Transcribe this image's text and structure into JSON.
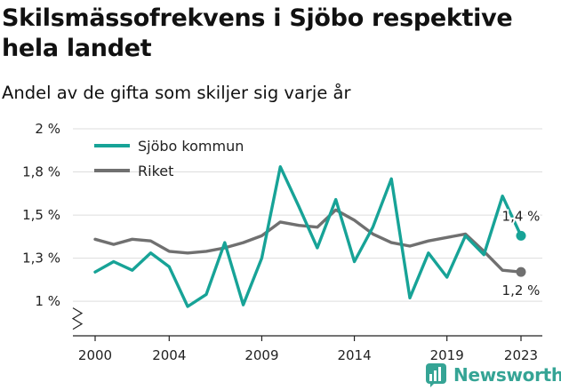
{
  "title": "Skilsmässofrekvens i Sjöbo respektive hela landet",
  "subtitle": "Andel av de gifta som skiljer sig varje år",
  "brand": {
    "name": "Newsworthy"
  },
  "colors": {
    "sjobo": "#17a397",
    "riket": "#707070",
    "grid": "#dddddd",
    "axis": "#222222",
    "brand": "#35a495"
  },
  "chart_data": {
    "type": "line",
    "title": "Skilsmässofrekvens i Sjöbo respektive hela landet",
    "subtitle": "Andel av de gifta som skiljer sig varje år",
    "xlabel": "",
    "ylabel": "",
    "x": [
      2000,
      2001,
      2002,
      2003,
      2004,
      2005,
      2006,
      2007,
      2008,
      2009,
      2010,
      2011,
      2012,
      2013,
      2014,
      2015,
      2016,
      2017,
      2018,
      2019,
      2020,
      2021,
      2022,
      2023
    ],
    "x_ticks": [
      2000,
      2004,
      2009,
      2014,
      2019,
      2023
    ],
    "x_tick_labels": [
      "2000",
      "2004",
      "2009",
      "2014",
      "2019",
      "2023"
    ],
    "ylim": [
      0.8,
      2.0
    ],
    "y_axis_broken": true,
    "y_ticks": [
      1.0,
      1.25,
      1.5,
      1.75,
      2.0
    ],
    "y_tick_labels": [
      "1 %",
      "1,3 %",
      "1,5 %",
      "1,8 %",
      "2 %"
    ],
    "grid": true,
    "legend_position": "top-left",
    "series": [
      {
        "name": "Sjöbo kommun",
        "color": "#17a397",
        "values": [
          1.17,
          1.23,
          1.18,
          1.28,
          1.2,
          0.97,
          1.04,
          1.34,
          0.98,
          1.25,
          1.78,
          1.55,
          1.31,
          1.59,
          1.23,
          1.43,
          1.71,
          1.02,
          1.28,
          1.14,
          1.38,
          1.27,
          1.61,
          1.38
        ],
        "end_label": "1,4 %"
      },
      {
        "name": "Riket",
        "color": "#707070",
        "values": [
          1.36,
          1.33,
          1.36,
          1.35,
          1.29,
          1.28,
          1.29,
          1.31,
          1.34,
          1.38,
          1.46,
          1.44,
          1.43,
          1.53,
          1.47,
          1.39,
          1.34,
          1.32,
          1.35,
          1.37,
          1.39,
          1.29,
          1.18,
          1.17
        ],
        "end_label": "1,2 %"
      }
    ]
  }
}
